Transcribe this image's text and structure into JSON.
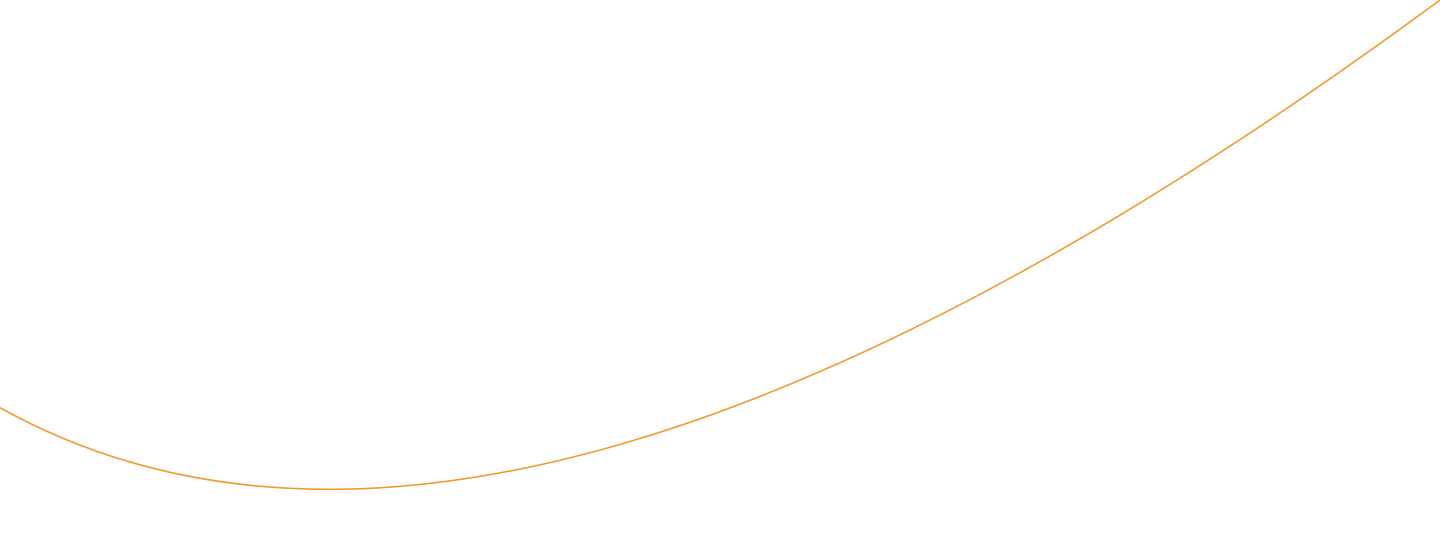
{
  "background_color": "#ffffff",
  "arc": {
    "stroke_color": "#f29a2e",
    "shape": "circle-arc-segment"
  }
}
